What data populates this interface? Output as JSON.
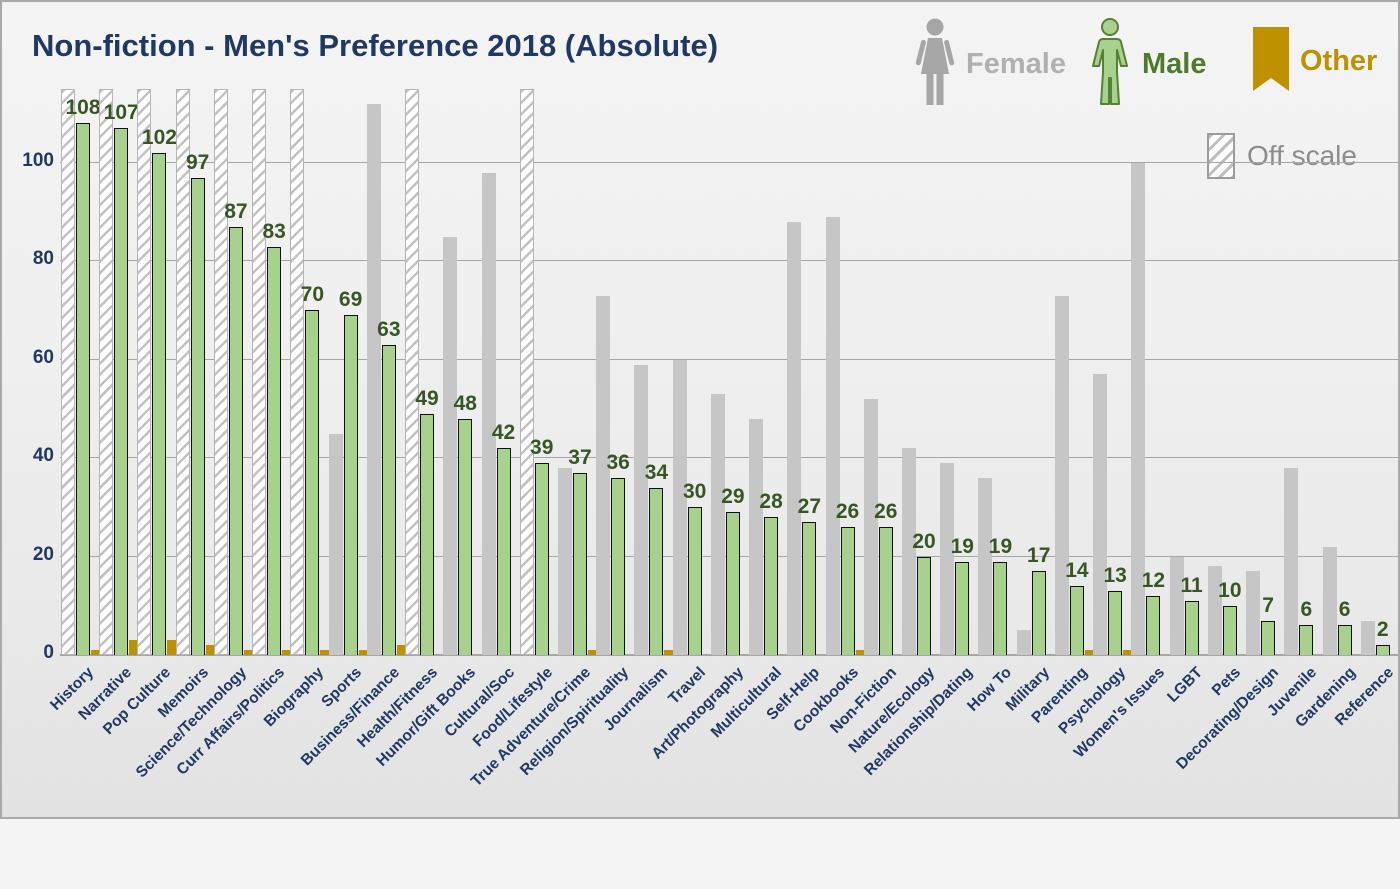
{
  "title": "Non-fiction - Men's Preference 2018 (Absolute)",
  "legend": {
    "female_label": "Female",
    "male_label": "Male",
    "other_label": "Other",
    "off_scale_label": "Off scale"
  },
  "colors": {
    "male_fill": "#a9d18e",
    "male_outline": "#111111",
    "male_value_text": "#375623",
    "male_legend_text": "#4e7a2b",
    "female_fill": "#c6c6c6",
    "female_legend_text": "#b0b0b0",
    "other_fill": "#bf9000",
    "title_text": "#1f3864",
    "axis_text": "#1f3864",
    "gridline": "#a6a6a6",
    "off_scale_text": "#8c8c8c"
  },
  "y_axis": {
    "ticks": [
      0,
      20,
      40,
      60,
      80,
      100
    ],
    "max": 115
  },
  "chart_data": {
    "type": "bar",
    "title": "Non-fiction - Men's Preference 2018 (Absolute)",
    "xlabel": "",
    "ylabel": "",
    "ylim": [
      0,
      115
    ],
    "grid": true,
    "legend_position": "top-right",
    "categories": [
      "History",
      "Narrative",
      "Pop Culture",
      "Memoirs",
      "Science/Technology",
      "Curr Affairs/Politics",
      "Biography",
      "Sports",
      "Business/Finance",
      "Health/Fitness",
      "Humor/Gift Books",
      "Cultural/Soc",
      "Food/Lifestyle",
      "True Adventure/Crime",
      "Religion/Spirituality",
      "Journalism",
      "Travel",
      "Art/Photography",
      "Multicultural",
      "Self-Help",
      "Cookbooks",
      "Non-Fiction",
      "Nature/Ecology",
      "Relationship/Dating",
      "How To",
      "Military",
      "Parenting",
      "Psychology",
      "Women's Issues",
      "LGBT",
      "Pets",
      "Decorating/Design",
      "Juvenile",
      "Gardening",
      "Reference"
    ],
    "series": [
      {
        "name": "Female",
        "note": "null value means the bar is drawn hatched as off scale (exceeds axis max)",
        "values": [
          null,
          null,
          null,
          null,
          null,
          null,
          null,
          45,
          112,
          null,
          85,
          98,
          null,
          38,
          73,
          59,
          60,
          53,
          48,
          88,
          89,
          52,
          42,
          39,
          36,
          5,
          73,
          57,
          100,
          20,
          18,
          17,
          38,
          22,
          7
        ],
        "off_scale": [
          true,
          true,
          true,
          true,
          true,
          true,
          true,
          false,
          false,
          true,
          false,
          false,
          true,
          false,
          false,
          false,
          false,
          false,
          false,
          false,
          false,
          false,
          false,
          false,
          false,
          false,
          false,
          false,
          false,
          false,
          false,
          false,
          false,
          false,
          false
        ]
      },
      {
        "name": "Male",
        "values": [
          108,
          107,
          102,
          97,
          87,
          83,
          70,
          69,
          63,
          49,
          48,
          42,
          39,
          37,
          36,
          34,
          30,
          29,
          28,
          27,
          26,
          26,
          20,
          19,
          19,
          17,
          14,
          13,
          12,
          11,
          10,
          7,
          6,
          6,
          2
        ],
        "data_labels_shown": true
      },
      {
        "name": "Other",
        "values": [
          1,
          3,
          3,
          2,
          1,
          1,
          1,
          1,
          2,
          0,
          0,
          0,
          0,
          1,
          0,
          1,
          0,
          0,
          0,
          0,
          1,
          0,
          0,
          0,
          0,
          0,
          1,
          1,
          0,
          0,
          0,
          0,
          0,
          0,
          0
        ]
      }
    ]
  }
}
